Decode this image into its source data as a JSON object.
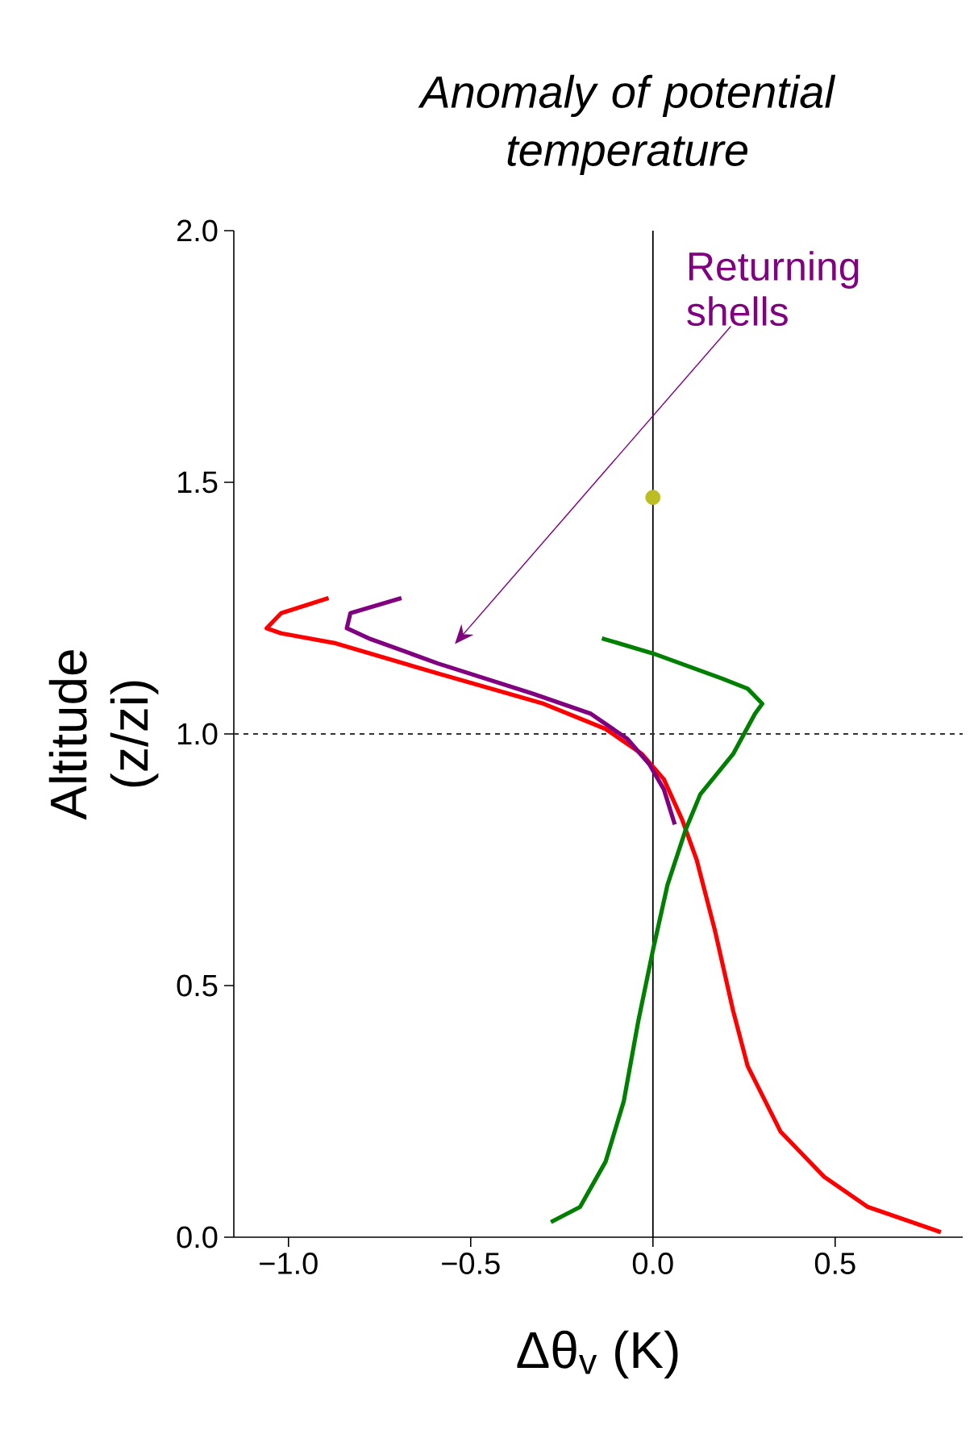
{
  "chart_data": {
    "type": "line",
    "title": "Anomaly of potential temperature",
    "xlabel": "Δθ$_{v}$ (K)",
    "ylabel": "Altitude (z/zi)",
    "xlim": [
      -1.15,
      0.85
    ],
    "ylim": [
      0,
      2
    ],
    "xticks": [
      {
        "value": -1.0,
        "label": "−1.0"
      },
      {
        "value": -0.5,
        "label": "−0.5"
      },
      {
        "value": 0.0,
        "label": "0.0"
      },
      {
        "value": 0.5,
        "label": "0.5"
      }
    ],
    "yticks": [
      {
        "value": 0.0,
        "label": "0.0"
      },
      {
        "value": 0.5,
        "label": "0.5"
      },
      {
        "value": 1.0,
        "label": "1.0"
      },
      {
        "value": 1.5,
        "label": "1.5"
      },
      {
        "value": 2.0,
        "label": "2.0"
      }
    ],
    "series": [
      {
        "color": "#ff0000",
        "x": [
          0.79,
          0.59,
          0.47,
          0.35,
          0.26,
          0.22,
          0.17,
          0.12,
          0.08,
          0.03,
          -0.03,
          -0.13,
          -0.3,
          -0.59,
          -0.87,
          -1.02,
          -1.06,
          -1.02,
          -0.89
        ],
        "values": [
          0.01,
          0.06,
          0.12,
          0.21,
          0.34,
          0.45,
          0.61,
          0.75,
          0.83,
          0.91,
          0.96,
          1.01,
          1.06,
          1.12,
          1.18,
          1.2,
          1.21,
          1.24,
          1.27
        ]
      },
      {
        "color": "#800080",
        "x": [
          0.06,
          0.03,
          -0.01,
          -0.07,
          -0.17,
          -0.33,
          -0.59,
          -0.78,
          -0.84,
          -0.83,
          -0.69
        ],
        "values": [
          0.82,
          0.89,
          0.94,
          0.99,
          1.04,
          1.08,
          1.14,
          1.19,
          1.21,
          1.24,
          1.27
        ]
      },
      {
        "color": "#008000",
        "x": [
          -0.28,
          -0.2,
          -0.13,
          -0.08,
          -0.04,
          0.0,
          0.04,
          0.09,
          0.13,
          0.22,
          0.28,
          0.3,
          0.26,
          0.19,
          0.0,
          -0.14
        ],
        "values": [
          0.03,
          0.06,
          0.15,
          0.27,
          0.43,
          0.57,
          0.7,
          0.81,
          0.88,
          0.96,
          1.04,
          1.06,
          1.09,
          1.11,
          1.16,
          1.19
        ]
      },
      {
        "type": "scatter",
        "color": "#bcbd22",
        "x": [
          0.0
        ],
        "values": [
          1.47
        ]
      }
    ],
    "ref_lines": [
      {
        "axis": "x",
        "value": 0,
        "color": "#000000",
        "line_style": "solid"
      },
      {
        "axis": "y",
        "value": 1,
        "color": "#333333",
        "line_style": "dashed"
      }
    ],
    "annotations": [
      "Returning shells"
    ],
    "grid": false
  }
}
